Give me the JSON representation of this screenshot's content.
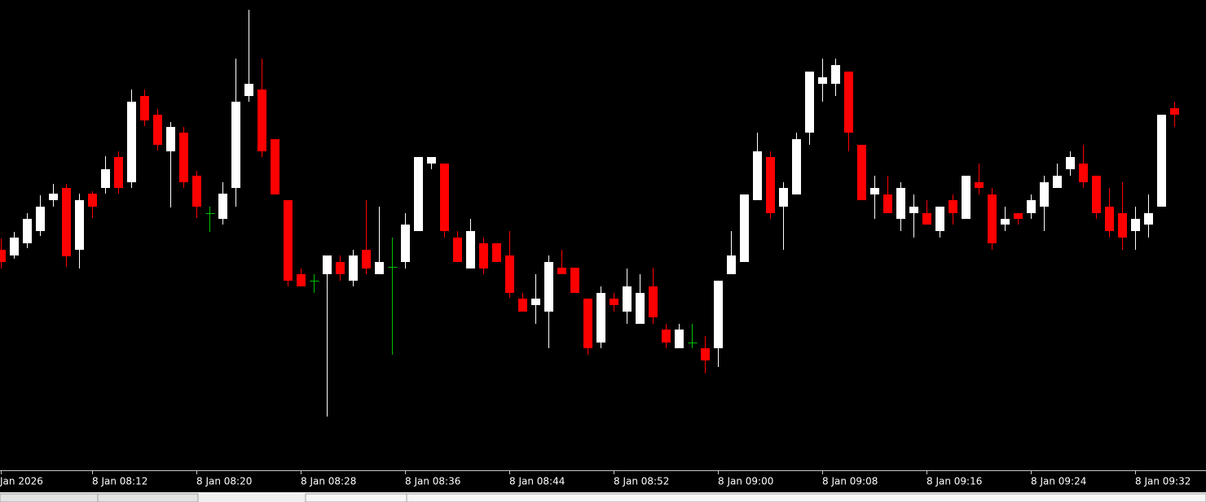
{
  "chart_data": {
    "type": "candlestick",
    "categories": [
      "Jan 2026",
      null,
      null,
      null,
      null,
      null,
      null,
      "8 Jan 08:12",
      null,
      null,
      null,
      null,
      null,
      null,
      null,
      "8 Jan 08:20",
      null,
      null,
      null,
      null,
      null,
      null,
      null,
      "8 Jan 08:28",
      null,
      null,
      null,
      null,
      null,
      null,
      null,
      "8 Jan 08:36",
      null,
      null,
      null,
      null,
      null,
      null,
      null,
      "8 Jan 08:44",
      null,
      null,
      null,
      null,
      null,
      null,
      null,
      "8 Jan 08:52",
      null,
      null,
      null,
      null,
      null,
      null,
      null,
      "8 Jan 09:00",
      null,
      null,
      null,
      null,
      null,
      null,
      null,
      "8 Jan 09:08",
      null,
      null,
      null,
      null,
      null,
      null,
      null,
      "8 Jan 09:16",
      null,
      null,
      null,
      null,
      null,
      null,
      null,
      "8 Jan 09:24",
      null,
      null,
      null,
      null,
      null,
      null,
      null,
      "8 Jan 09:32",
      null,
      null,
      null
    ],
    "open": [
      271,
      264,
      279,
      294,
      332,
      347,
      271,
      340,
      347,
      385,
      354,
      460,
      437,
      392,
      415,
      362,
      316,
      309,
      347,
      460,
      468,
      407,
      332,
      241,
      233,
      241,
      256,
      233,
      271,
      241,
      250,
      256,
      294,
      377,
      377,
      286,
      248,
      279,
      279,
      264,
      211,
      203,
      195,
      249,
      249,
      211,
      157,
      211,
      195,
      180,
      226,
      173,
      150,
      157,
      150,
      150,
      241,
      256,
      332,
      385,
      324,
      339,
      415,
      475,
      475,
      490,
      400,
      339,
      339,
      309,
      316,
      316,
      294,
      332,
      309,
      354,
      339,
      302,
      316,
      316,
      324,
      347,
      370,
      377,
      362,
      324,
      316,
      294,
      302,
      324,
      445
    ],
    "high": [
      285,
      293,
      316,
      338,
      352,
      352,
      340,
      343,
      386,
      392,
      468,
      468,
      444,
      428,
      422,
      368,
      324,
      354,
      506,
      566,
      506,
      407,
      332,
      248,
      241,
      264,
      264,
      271,
      332,
      324,
      286,
      316,
      385,
      385,
      377,
      294,
      309,
      286,
      279,
      294,
      218,
      241,
      264,
      271,
      249,
      211,
      226,
      218,
      248,
      241,
      249,
      180,
      180,
      180,
      165,
      233,
      294,
      339,
      415,
      392,
      354,
      415,
      490,
      506,
      506,
      490,
      400,
      362,
      362,
      354,
      339,
      332,
      324,
      339,
      362,
      377,
      347,
      324,
      316,
      339,
      362,
      377,
      392,
      400,
      362,
      347,
      354,
      324,
      339,
      437,
      453
    ],
    "low": [
      248,
      260,
      273,
      288,
      324,
      250,
      248,
      310,
      340,
      340,
      347,
      423,
      393,
      323,
      347,
      310,
      293,
      302,
      324,
      453,
      385,
      339,
      226,
      226,
      218,
      66,
      233,
      226,
      241,
      241,
      142,
      248,
      294,
      370,
      286,
      256,
      248,
      241,
      256,
      212,
      195,
      180,
      150,
      241,
      218,
      142,
      150,
      195,
      180,
      180,
      180,
      150,
      150,
      150,
      119,
      127,
      241,
      256,
      332,
      309,
      271,
      339,
      400,
      453,
      460,
      392,
      332,
      309,
      316,
      294,
      286,
      302,
      286,
      302,
      309,
      339,
      271,
      294,
      302,
      309,
      294,
      347,
      362,
      347,
      309,
      286,
      271,
      271,
      286,
      324,
      422
    ],
    "close": [
      256,
      286,
      309,
      324,
      340,
      263,
      332,
      324,
      370,
      347,
      453,
      430,
      400,
      422,
      354,
      324,
      316,
      340,
      453,
      475,
      392,
      339,
      233,
      226,
      233,
      264,
      241,
      264,
      248,
      256,
      250,
      302,
      385,
      385,
      294,
      256,
      294,
      248,
      256,
      218,
      195,
      211,
      256,
      241,
      218,
      150,
      218,
      203,
      226,
      218,
      188,
      157,
      173,
      157,
      135,
      233,
      264,
      339,
      392,
      316,
      347,
      407,
      490,
      483,
      498,
      415,
      332,
      347,
      316,
      347,
      324,
      302,
      324,
      316,
      362,
      347,
      279,
      309,
      309,
      332,
      354,
      362,
      385,
      354,
      316,
      294,
      286,
      309,
      316,
      437,
      437
    ],
    "up_color": "#ffffff",
    "down_color": "#ff0000",
    "doji_color": "#00c000",
    "ylim": [
      0,
      578
    ]
  }
}
